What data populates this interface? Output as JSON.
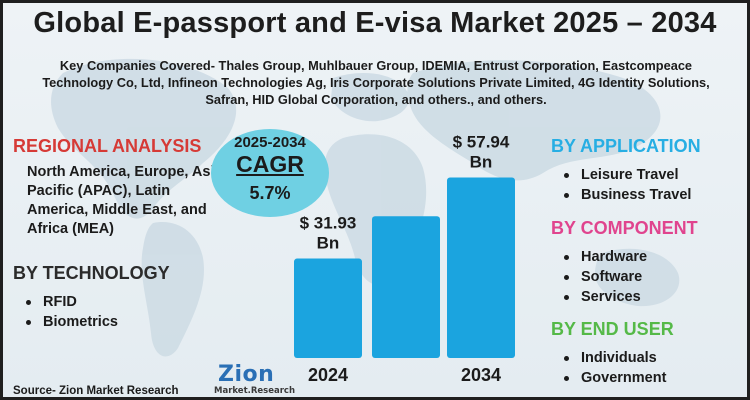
{
  "title": "Global E-passport and E-visa Market 2025 – 2034",
  "subtitle": "Key Companies Covered- Thales Group, Muhlbauer Group, IDEMIA, Entrust Corporation, Eastcompeace Technology Co, Ltd, Infineon Technologies Ag, Iris Corporate Solutions Private Limited, 4G Identity Solutions, Safran, HID Global Corporation, and others., and others.",
  "regional": {
    "heading": "REGIONAL ANALYSIS",
    "text": "North America, Europe, Asia Pacific (APAC), Latin America, Middle East, and Africa (MEA)"
  },
  "technology": {
    "heading": "BY TECHNOLOGY",
    "items": [
      "RFID",
      "Biometrics"
    ]
  },
  "cagr": {
    "period": "2025-2034",
    "label": "CAGR",
    "value": "5.7%"
  },
  "application": {
    "heading": "BY APPLICATION",
    "items": [
      "Leisure Travel",
      "Business Travel"
    ]
  },
  "component": {
    "heading": "BY COMPONENT",
    "items": [
      "Hardware",
      "Software",
      "Services"
    ]
  },
  "end_user": {
    "heading": "BY END USER",
    "items": [
      "Individuals",
      "Government"
    ]
  },
  "source": "Source- Zion Market Research",
  "logo": {
    "main": "Zion",
    "sub": "Market.Research"
  },
  "colors": {
    "bar": "#1ba4df",
    "regional_heading": "#d63a36",
    "application_heading": "#27aee3",
    "component_heading": "#e0448e",
    "end_user_heading": "#55b948",
    "cagr_circle": "#6fd0e3"
  },
  "chart_data": {
    "type": "bar",
    "categories": [
      "2024",
      "",
      "2034"
    ],
    "values": [
      31.93,
      45.5,
      57.94
    ],
    "data_labels": [
      "$ 31.93 Bn",
      "",
      "$ 57.94 Bn"
    ],
    "ylim": [
      0,
      70
    ],
    "grid": false,
    "legend": "none"
  }
}
